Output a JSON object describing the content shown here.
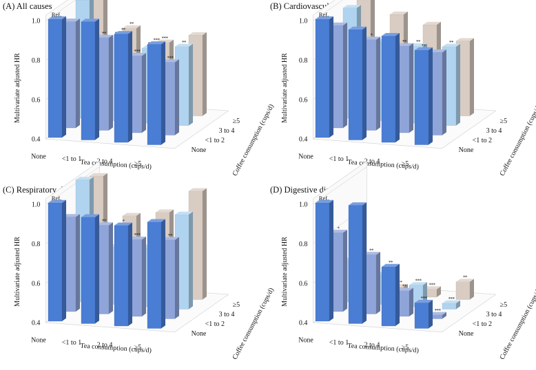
{
  "figure": {
    "tea_levels": [
      "None",
      "<1 to 1",
      "2 to 4",
      "≥5"
    ],
    "coffee_levels": [
      "None",
      "<1 to 2",
      "3 to 4",
      "≥5"
    ],
    "x_axis_label": "Tea consumption (cups/d)",
    "y_axis_label": "Multivariate adjusted HR",
    "z_axis_label": "Coffee consumption (cups/d)",
    "y_ticks": [
      "0.4",
      "0.6",
      "0.8",
      "1.0"
    ],
    "reference_label": "Ref.",
    "coffee_colors": [
      "#4a7dd4",
      "#8fa4d8",
      "#b0d4ef",
      "#d9ccc2"
    ]
  },
  "chart_data": [
    {
      "type": "bar3d",
      "title": "(A) All causes",
      "ylim": [
        0.4,
        1.0
      ],
      "series": [
        {
          "coffee": "None",
          "values": [
            1.0,
            1.0,
            0.95,
            0.91
          ],
          "significance": [
            "",
            "",
            "**",
            "***"
          ]
        },
        {
          "coffee": "<1 to 2",
          "values": [
            0.94,
            0.87,
            0.79,
            0.77
          ],
          "significance": [
            "",
            "**",
            "***",
            "***"
          ]
        },
        {
          "coffee": "3 to 4",
          "values": [
            1.0,
            0.82,
            0.78,
            0.8
          ],
          "significance": [
            "",
            "***",
            "***",
            "**"
          ]
        },
        {
          "coffee": "≥5",
          "values": [
            0.95,
            0.82,
            0.76,
            0.81
          ],
          "significance": [
            "",
            "**",
            "***",
            ""
          ]
        }
      ]
    },
    {
      "type": "bar3d",
      "title": "(B) Cardiovascular disease",
      "ylim": [
        0.4,
        1.0
      ],
      "series": [
        {
          "coffee": "None",
          "values": [
            1.0,
            0.96,
            0.94,
            0.88
          ],
          "significance": [
            "",
            "",
            "",
            "**"
          ]
        },
        {
          "coffee": "<1 to 2",
          "values": [
            0.92,
            0.86,
            0.84,
            0.82
          ],
          "significance": [
            "",
            "*",
            "**",
            ""
          ]
        },
        {
          "coffee": "3 to 4",
          "values": [
            0.96,
            0.8,
            0.79,
            0.8
          ],
          "significance": [
            "",
            "",
            "**",
            "**"
          ]
        },
        {
          "coffee": "≥5",
          "values": [
            0.95,
            0.89,
            0.85,
            0.78
          ],
          "significance": [
            "",
            "",
            "",
            ""
          ]
        }
      ]
    },
    {
      "type": "bar3d",
      "title": "(C) Respiratory disease",
      "ylim": [
        0.4,
        1.0
      ],
      "series": [
        {
          "coffee": "None",
          "values": [
            1.0,
            0.94,
            0.91,
            0.94
          ],
          "significance": [
            "",
            "",
            "*",
            ""
          ]
        },
        {
          "coffee": "<1 to 2",
          "values": [
            0.88,
            0.85,
            0.79,
            0.8
          ],
          "significance": [
            "",
            "**",
            "***",
            "**"
          ]
        },
        {
          "coffee": "3 to 4",
          "values": [
            1.02,
            0.69,
            0.7,
            0.88
          ],
          "significance": [
            "",
            "***",
            "***",
            ""
          ]
        },
        {
          "coffee": "≥5",
          "values": [
            0.99,
            0.8,
            0.83,
            0.95
          ],
          "significance": [
            "",
            "",
            "",
            ""
          ]
        }
      ]
    },
    {
      "type": "bar3d",
      "title": "(D) Digestive disease",
      "ylim": [
        0.4,
        1.0
      ],
      "series": [
        {
          "coffee": "None",
          "values": [
            1.0,
            1.0,
            0.7,
            0.53
          ],
          "significance": [
            "",
            "",
            "**",
            "***"
          ]
        },
        {
          "coffee": "<1 to 2",
          "values": [
            0.8,
            0.7,
            0.53,
            0.42
          ],
          "significance": [
            "*",
            "**",
            "**",
            "***"
          ]
        },
        {
          "coffee": "3 to 4",
          "values": [
            0.61,
            0.55,
            0.51,
            0.43
          ],
          "significance": [
            "***",
            "***",
            "***",
            "***"
          ]
        },
        {
          "coffee": "≥5",
          "values": [
            0.52,
            0.44,
            0.44,
            0.49
          ],
          "significance": [
            "***",
            "***",
            "***",
            "**"
          ]
        }
      ]
    }
  ]
}
